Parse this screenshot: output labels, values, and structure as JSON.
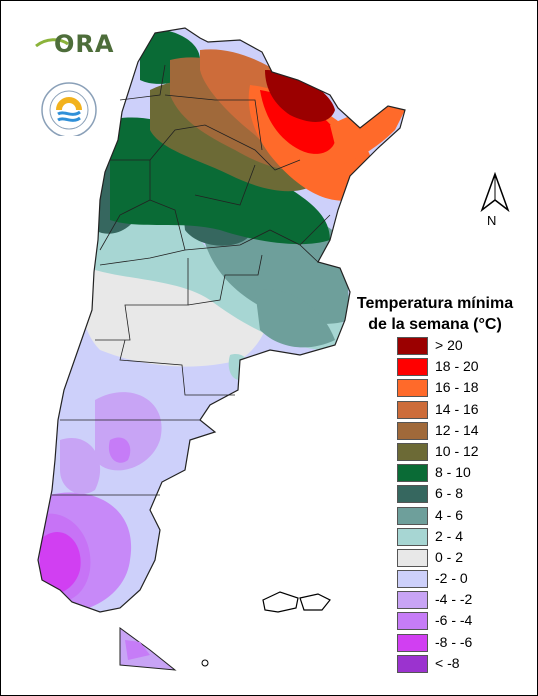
{
  "logo": {
    "name": "ORA",
    "seal_text": "SERVICIO METEOROLÓGICO NACIONAL · ARGENTINA"
  },
  "north_arrow": {
    "label": "N"
  },
  "legend": {
    "title_line1": "Temperatura mínima",
    "title_line2": "de la semana (°C)",
    "classes": [
      {
        "label": "> 20",
        "color": "#9b0000"
      },
      {
        "label": "18 - 20",
        "color": "#ff0000"
      },
      {
        "label": "16 - 18",
        "color": "#ff6a2a"
      },
      {
        "label": "14 - 16",
        "color": "#cd6c3a"
      },
      {
        "label": "12 - 14",
        "color": "#a0693a"
      },
      {
        "label": "10 - 12",
        "color": "#6c6a36"
      },
      {
        "label": "8 - 10",
        "color": "#0a6b36"
      },
      {
        "label": "6 - 8",
        "color": "#36675f"
      },
      {
        "label": "4 - 6",
        "color": "#6e9f9b"
      },
      {
        "label": "2 - 4",
        "color": "#a7d6d3"
      },
      {
        "label": "0 - 2",
        "color": "#e8e8e8"
      },
      {
        "label": "-2 - 0",
        "color": "#cdd0fa"
      },
      {
        "label": "-4 - -2",
        "color": "#c8a4f5"
      },
      {
        "label": "-6 - -4",
        "color": "#c67cf7"
      },
      {
        "label": "-8 - -6",
        "color": "#d13ff2"
      },
      {
        "label": "< -8",
        "color": "#9b33cf"
      }
    ]
  }
}
